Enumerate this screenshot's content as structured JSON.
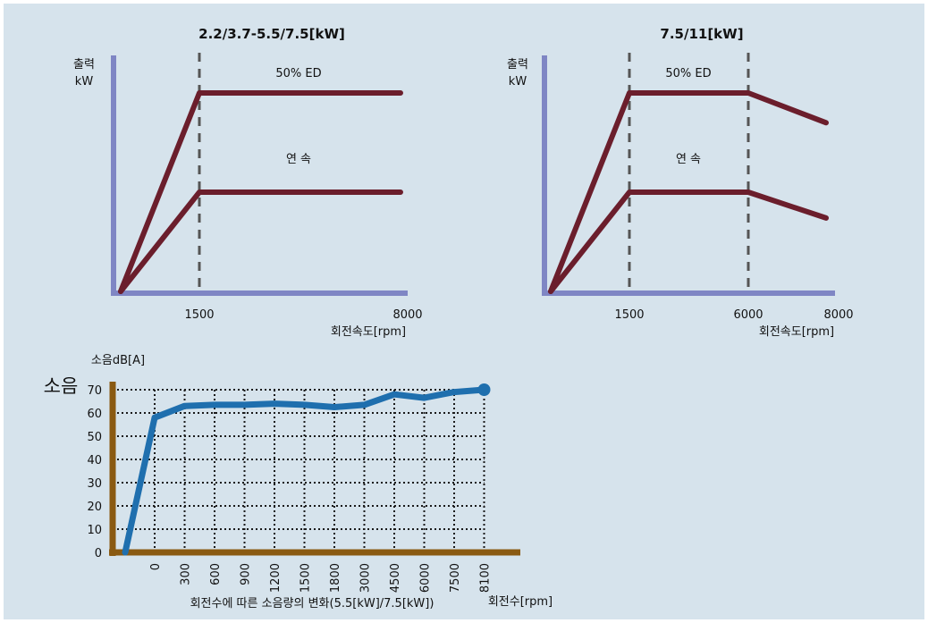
{
  "colors": {
    "background": "#d6e3ec",
    "power_axis": "#7f86c4",
    "power_line": "#6b1e2c",
    "noise_axis": "#8a5a12",
    "noise_line": "#1f6fae",
    "grid": "#1a1a1a"
  },
  "chart_data": [
    {
      "type": "line",
      "title": "2.2/3.7-5.5/7.5[kW]",
      "ylabel_top": "출력",
      "ylabel_unit": "kW",
      "xlabel": "회전속도[rpm]",
      "x_ticks": [
        "1500",
        "8000"
      ],
      "series_labels": [
        "50% ED",
        "연 속"
      ],
      "annotations": [
        "50% ED",
        "연 속"
      ],
      "xlim": [
        0,
        8000
      ],
      "dashed_at": [
        1500
      ],
      "series": [
        {
          "x": [
            0,
            1500,
            8000
          ],
          "y": [
            0,
            1.0,
            1.0
          ]
        },
        {
          "x": [
            0,
            1500,
            8000
          ],
          "y": [
            0,
            0.5,
            0.5
          ]
        }
      ]
    },
    {
      "type": "line",
      "title": "7.5/11[kW]",
      "ylabel_top": "출력",
      "ylabel_unit": "kW",
      "xlabel": "회전속도[rpm]",
      "x_ticks": [
        "1500",
        "6000",
        "8000"
      ],
      "annotations": [
        "50% ED",
        "연 속"
      ],
      "xlim": [
        0,
        8000
      ],
      "dashed_at": [
        1500,
        6000
      ],
      "series": [
        {
          "x": [
            0,
            1500,
            6000,
            8000
          ],
          "y": [
            0,
            1.0,
            1.0,
            0.85
          ]
        },
        {
          "x": [
            0,
            1500,
            6000,
            8000
          ],
          "y": [
            0,
            0.5,
            0.5,
            0.37
          ]
        }
      ]
    },
    {
      "type": "line",
      "side_label": "소음",
      "ylabel": "소음dB[A]",
      "xlabel": "회전수[rpm]",
      "caption": "회전수에 따른 소음량의 변화(5.5[kW]/7.5[kW])",
      "categories": [
        "0",
        "300",
        "600",
        "900",
        "1200",
        "1500",
        "1800",
        "3000",
        "4500",
        "6000",
        "7500",
        "8100"
      ],
      "y_ticks": [
        "0",
        "10",
        "20",
        "30",
        "40",
        "50",
        "60",
        "70"
      ],
      "ylim": [
        0,
        70
      ],
      "grid": true,
      "series": [
        {
          "values": [
            58,
            63,
            63.5,
            63.5,
            64,
            63.5,
            62.5,
            63.5,
            68,
            66.5,
            69,
            70
          ]
        }
      ]
    }
  ]
}
